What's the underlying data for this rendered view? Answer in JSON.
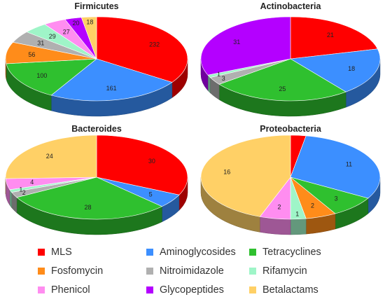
{
  "chart_data": [
    {
      "type": "pie",
      "title": "Firmicutes",
      "categories": [
        "MLS",
        "Aminoglycosides",
        "Tetracyclines",
        "Fosfomycin",
        "Nitroimidazole",
        "Rifamycin",
        "Phenicol",
        "Glycopeptides",
        "Betalactams"
      ],
      "values": [
        232,
        161,
        100,
        56,
        31,
        29,
        27,
        20,
        18
      ],
      "labels": [
        "232",
        "161",
        "100",
        "56",
        "31",
        "29",
        "27",
        "20",
        "18"
      ]
    },
    {
      "type": "pie",
      "title": "Actinobacteria",
      "categories": [
        "MLS",
        "Aminoglycosides",
        "Tetracyclines",
        "Fosfomycin",
        "Nitroimidazole",
        "Rifamycin",
        "Phenicol",
        "Glycopeptides",
        "Betalactams"
      ],
      "values": [
        21,
        18,
        25,
        0,
        3,
        1,
        0,
        31,
        0
      ],
      "labels": [
        "21",
        "18",
        "25",
        "",
        "3",
        "1",
        "",
        "31",
        ""
      ]
    },
    {
      "type": "pie",
      "title": "Bacteroides",
      "categories": [
        "MLS",
        "Aminoglycosides",
        "Tetracyclines",
        "Fosfomycin",
        "Nitroimidazole",
        "Rifamycin",
        "Phenicol",
        "Glycopeptides",
        "Betalactams"
      ],
      "values": [
        30,
        5,
        28,
        0,
        2,
        1,
        4,
        0,
        24
      ],
      "labels": [
        "30",
        "5",
        "28",
        "",
        "2",
        "1",
        "4",
        "",
        "24"
      ]
    },
    {
      "type": "pie",
      "title": "Proteobacteria",
      "categories": [
        "MLS",
        "Aminoglycosides",
        "Tetracyclines",
        "Fosfomycin",
        "Nitroimidazole",
        "Rifamycin",
        "Phenicol",
        "Glycopeptides",
        "Betalactams"
      ],
      "values": [
        1,
        11,
        3,
        2,
        0,
        1,
        2,
        0,
        16
      ],
      "labels": [
        "",
        "11",
        "3",
        "2",
        "",
        "1",
        "2",
        "",
        "16"
      ]
    }
  ],
  "legend": {
    "items": [
      {
        "label": "MLS",
        "color": "#ff0000"
      },
      {
        "label": "Aminoglycosides",
        "color": "#3c8fff"
      },
      {
        "label": "Tetracyclines",
        "color": "#2fc02f"
      },
      {
        "label": "Fosfomycin",
        "color": "#ff8c1a"
      },
      {
        "label": "Nitroimidazole",
        "color": "#b0b0b0"
      },
      {
        "label": "Rifamycin",
        "color": "#9ff5c8"
      },
      {
        "label": "Phenicol",
        "color": "#ff8df0"
      },
      {
        "label": "Glycopeptides",
        "color": "#b400ff"
      },
      {
        "label": "Betalactams",
        "color": "#ffd066"
      }
    ]
  }
}
